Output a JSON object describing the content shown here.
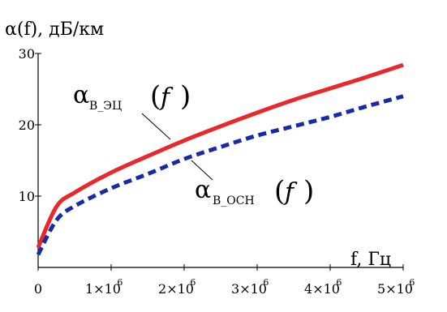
{
  "chart_data": {
    "type": "line",
    "ylabel": "α(f), дБ/км",
    "xlabel": "f, Гц",
    "xlim": [
      0,
      5000000
    ],
    "ylim": [
      0,
      30
    ],
    "x_ticks": [
      {
        "value": 0,
        "mantissa": "0",
        "exp": ""
      },
      {
        "value": 1000000,
        "mantissa": "1×10",
        "exp": "6"
      },
      {
        "value": 2000000,
        "mantissa": "2×10",
        "exp": "6"
      },
      {
        "value": 3000000,
        "mantissa": "3×10",
        "exp": "6"
      },
      {
        "value": 4000000,
        "mantissa": "4×10",
        "exp": "6"
      },
      {
        "value": 5000000,
        "mantissa": "5×10",
        "exp": "6"
      }
    ],
    "y_ticks": [
      10,
      20,
      30
    ],
    "grid": false,
    "series": [
      {
        "name": "α_В_ЭЦ(f)",
        "color": "#e8282b",
        "style": "solid",
        "x": [
          0,
          250000,
          500000,
          1000000,
          1500000,
          2000000,
          2500000,
          3000000,
          3500000,
          4000000,
          4500000,
          5000000
        ],
        "y": [
          2.8,
          8.5,
          10.5,
          13.3,
          15.6,
          17.8,
          19.8,
          21.7,
          23.5,
          25.1,
          26.7,
          28.4
        ]
      },
      {
        "name": "α_В_ОСН(f)",
        "color": "#1a2aa6",
        "style": "dashed",
        "x": [
          0,
          250000,
          500000,
          1000000,
          1500000,
          2000000,
          2500000,
          3000000,
          3500000,
          4000000,
          4500000,
          5000000
        ],
        "y": [
          1.8,
          6.6,
          8.6,
          11.1,
          13.1,
          15.2,
          16.9,
          18.5,
          19.8,
          21.1,
          22.6,
          24.0
        ]
      }
    ],
    "annotations": [
      {
        "alpha": "α",
        "sub": "В_ЭЦ",
        "arg": "f",
        "target_series": 0
      },
      {
        "alpha": "α",
        "sub": "В_ОСН",
        "arg": "f",
        "target_series": 1
      }
    ]
  }
}
